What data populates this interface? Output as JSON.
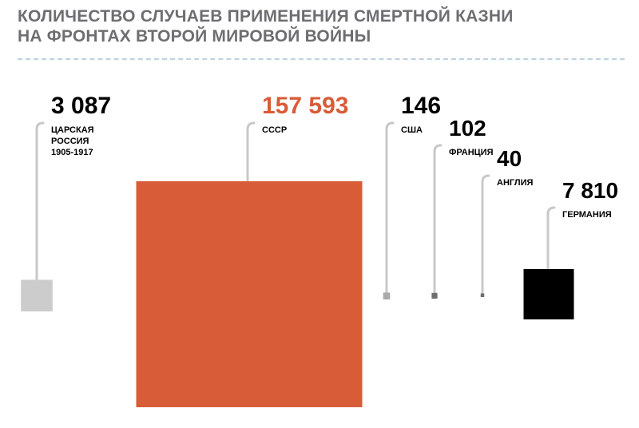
{
  "chart_data": {
    "type": "bar",
    "title_lines": [
      "КОЛИЧЕСТВО СЛУЧАЕВ ПРИМЕНЕНИЯ СМЕРТНОЙ КАЗНИ",
      "НА ФРОНТАХ ВТОРОЙ МИРОВОЙ ВОЙНЫ"
    ],
    "series": [
      {
        "category": "ЦАРСКАЯ РОССИЯ 1905-1917",
        "label_lines": [
          "ЦАРСКАЯ",
          "РОССИЯ",
          "1905-1917"
        ],
        "value": 3087,
        "value_label": "3 087",
        "color": "#cccccc"
      },
      {
        "category": "СССР",
        "label_lines": [
          "СССР"
        ],
        "value": 157593,
        "value_label": "157 593",
        "color": "#d85c38",
        "value_color": "#d85c38"
      },
      {
        "category": "США",
        "label_lines": [
          "США"
        ],
        "value": 146,
        "value_label": "146",
        "color": "#aaaaaa"
      },
      {
        "category": "ФРАНЦИЯ",
        "label_lines": [
          "ФРАНЦИЯ"
        ],
        "value": 102,
        "value_label": "102",
        "color": "#6d6e71"
      },
      {
        "category": "АНГЛИЯ",
        "label_lines": [
          "АНГЛИЯ"
        ],
        "value": 40,
        "value_label": "40",
        "color": "#6d6e71"
      },
      {
        "category": "ГЕРМАНИЯ",
        "label_lines": [
          "ГЕРМАНИЯ"
        ],
        "value": 7810,
        "value_label": "7 810",
        "color": "#000000"
      }
    ],
    "encoding": "square area proportional to value",
    "connector_color": "#c8c8c8"
  }
}
